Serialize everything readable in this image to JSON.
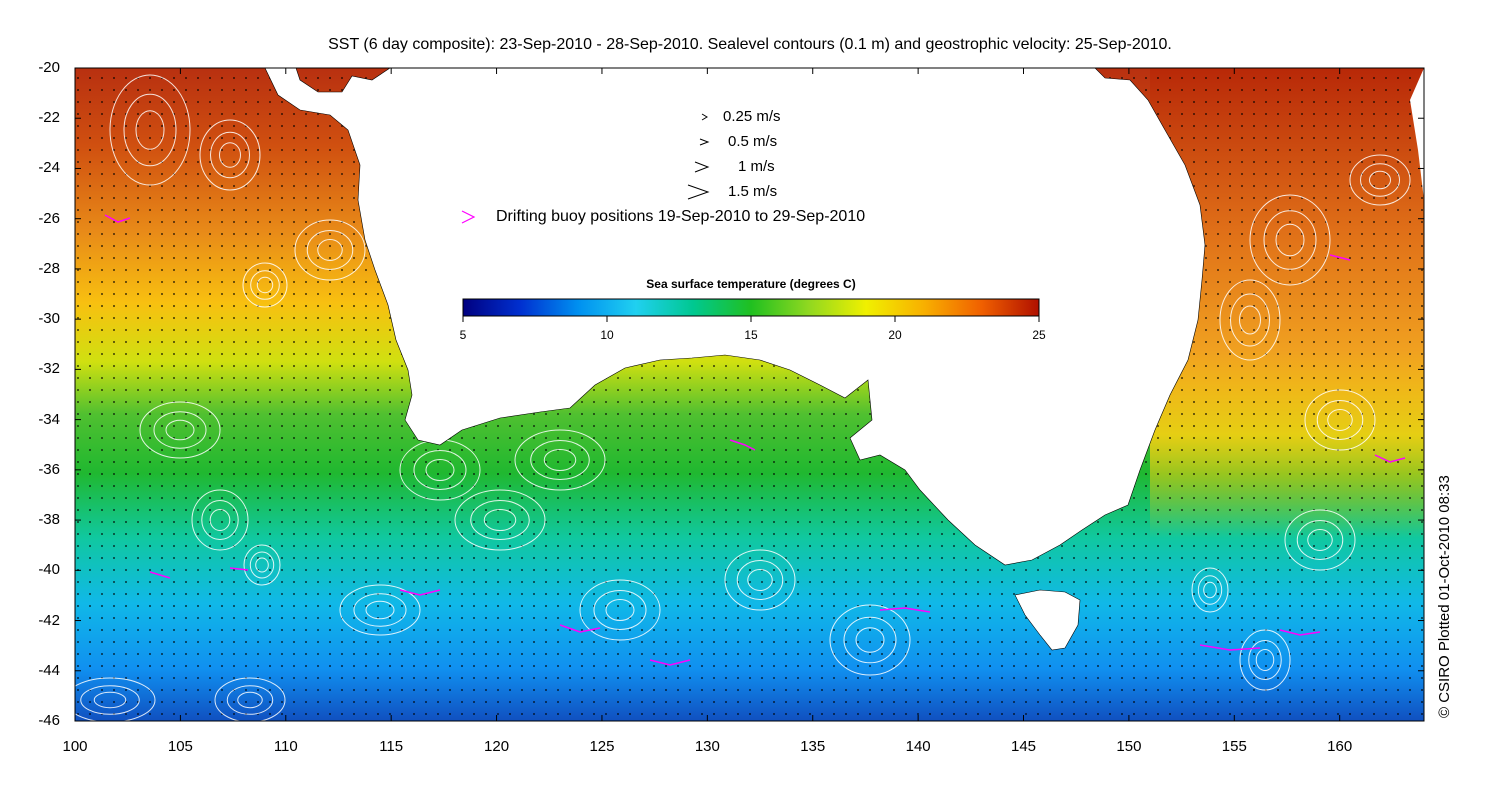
{
  "title": "SST (6 day composite): 23-Sep-2010 - 28-Sep-2010. Sealevel contours (0.1 m) and geostrophic velocity: 25-Sep-2010.",
  "credit": "© CSIRO Plotted 01-Oct-2010 08:33",
  "axes": {
    "x_ticks": [
      "100",
      "105",
      "110",
      "115",
      "120",
      "125",
      "130",
      "135",
      "140",
      "145",
      "150",
      "155",
      "160"
    ],
    "y_ticks": [
      "-20",
      "-22",
      "-24",
      "-26",
      "-28",
      "-30",
      "-32",
      "-34",
      "-36",
      "-38",
      "-40",
      "-42",
      "-44",
      "-46"
    ],
    "xlim": [
      100,
      164
    ],
    "ylim": [
      -46,
      -20
    ]
  },
  "legend": {
    "vectors": [
      {
        "label": "0.25 m/s",
        "speed": 0.25
      },
      {
        "label": "0.5 m/s",
        "speed": 0.5
      },
      {
        "label": "1 m/s",
        "speed": 1
      },
      {
        "label": "1.5 m/s",
        "speed": 1.5
      }
    ],
    "buoy_label": "Drifting buoy positions 19-Sep-2010 to 29-Sep-2010",
    "buoy_color": "#ff00ff"
  },
  "colorbar": {
    "title": "Sea surface temperature (degrees C)",
    "range": [
      5,
      25
    ],
    "ticks": [
      "5",
      "10",
      "15",
      "20",
      "25"
    ],
    "stops": [
      "#000080",
      "#0030d0",
      "#0090f0",
      "#20d0f0",
      "#00c890",
      "#20c020",
      "#90d820",
      "#f0f000",
      "#f8b000",
      "#f06000",
      "#b01000"
    ]
  },
  "colors": {
    "land": "#ffffff",
    "contour": "#ffffff",
    "velocity_arrow": "#000000"
  }
}
